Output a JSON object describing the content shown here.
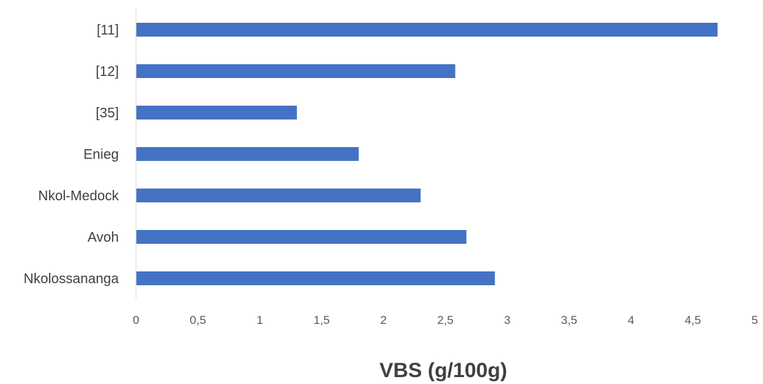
{
  "chart_data": {
    "type": "bar",
    "orientation": "horizontal",
    "categories": [
      "[11]",
      "[12]",
      "[35]",
      "Enieg",
      "Nkol-Medock",
      "Avoh",
      "Nkolossananga"
    ],
    "values": [
      4.7,
      2.58,
      1.3,
      1.8,
      2.3,
      2.67,
      2.9
    ],
    "xlabel": "VBS (g/100g)",
    "xlim": [
      0,
      5
    ],
    "xticks": [
      "0",
      "0,5",
      "1",
      "1,5",
      "2",
      "2,5",
      "3",
      "3,5",
      "4",
      "4,5",
      "5"
    ],
    "bar_color": "#4472c4",
    "grid": false,
    "legend": "none"
  }
}
